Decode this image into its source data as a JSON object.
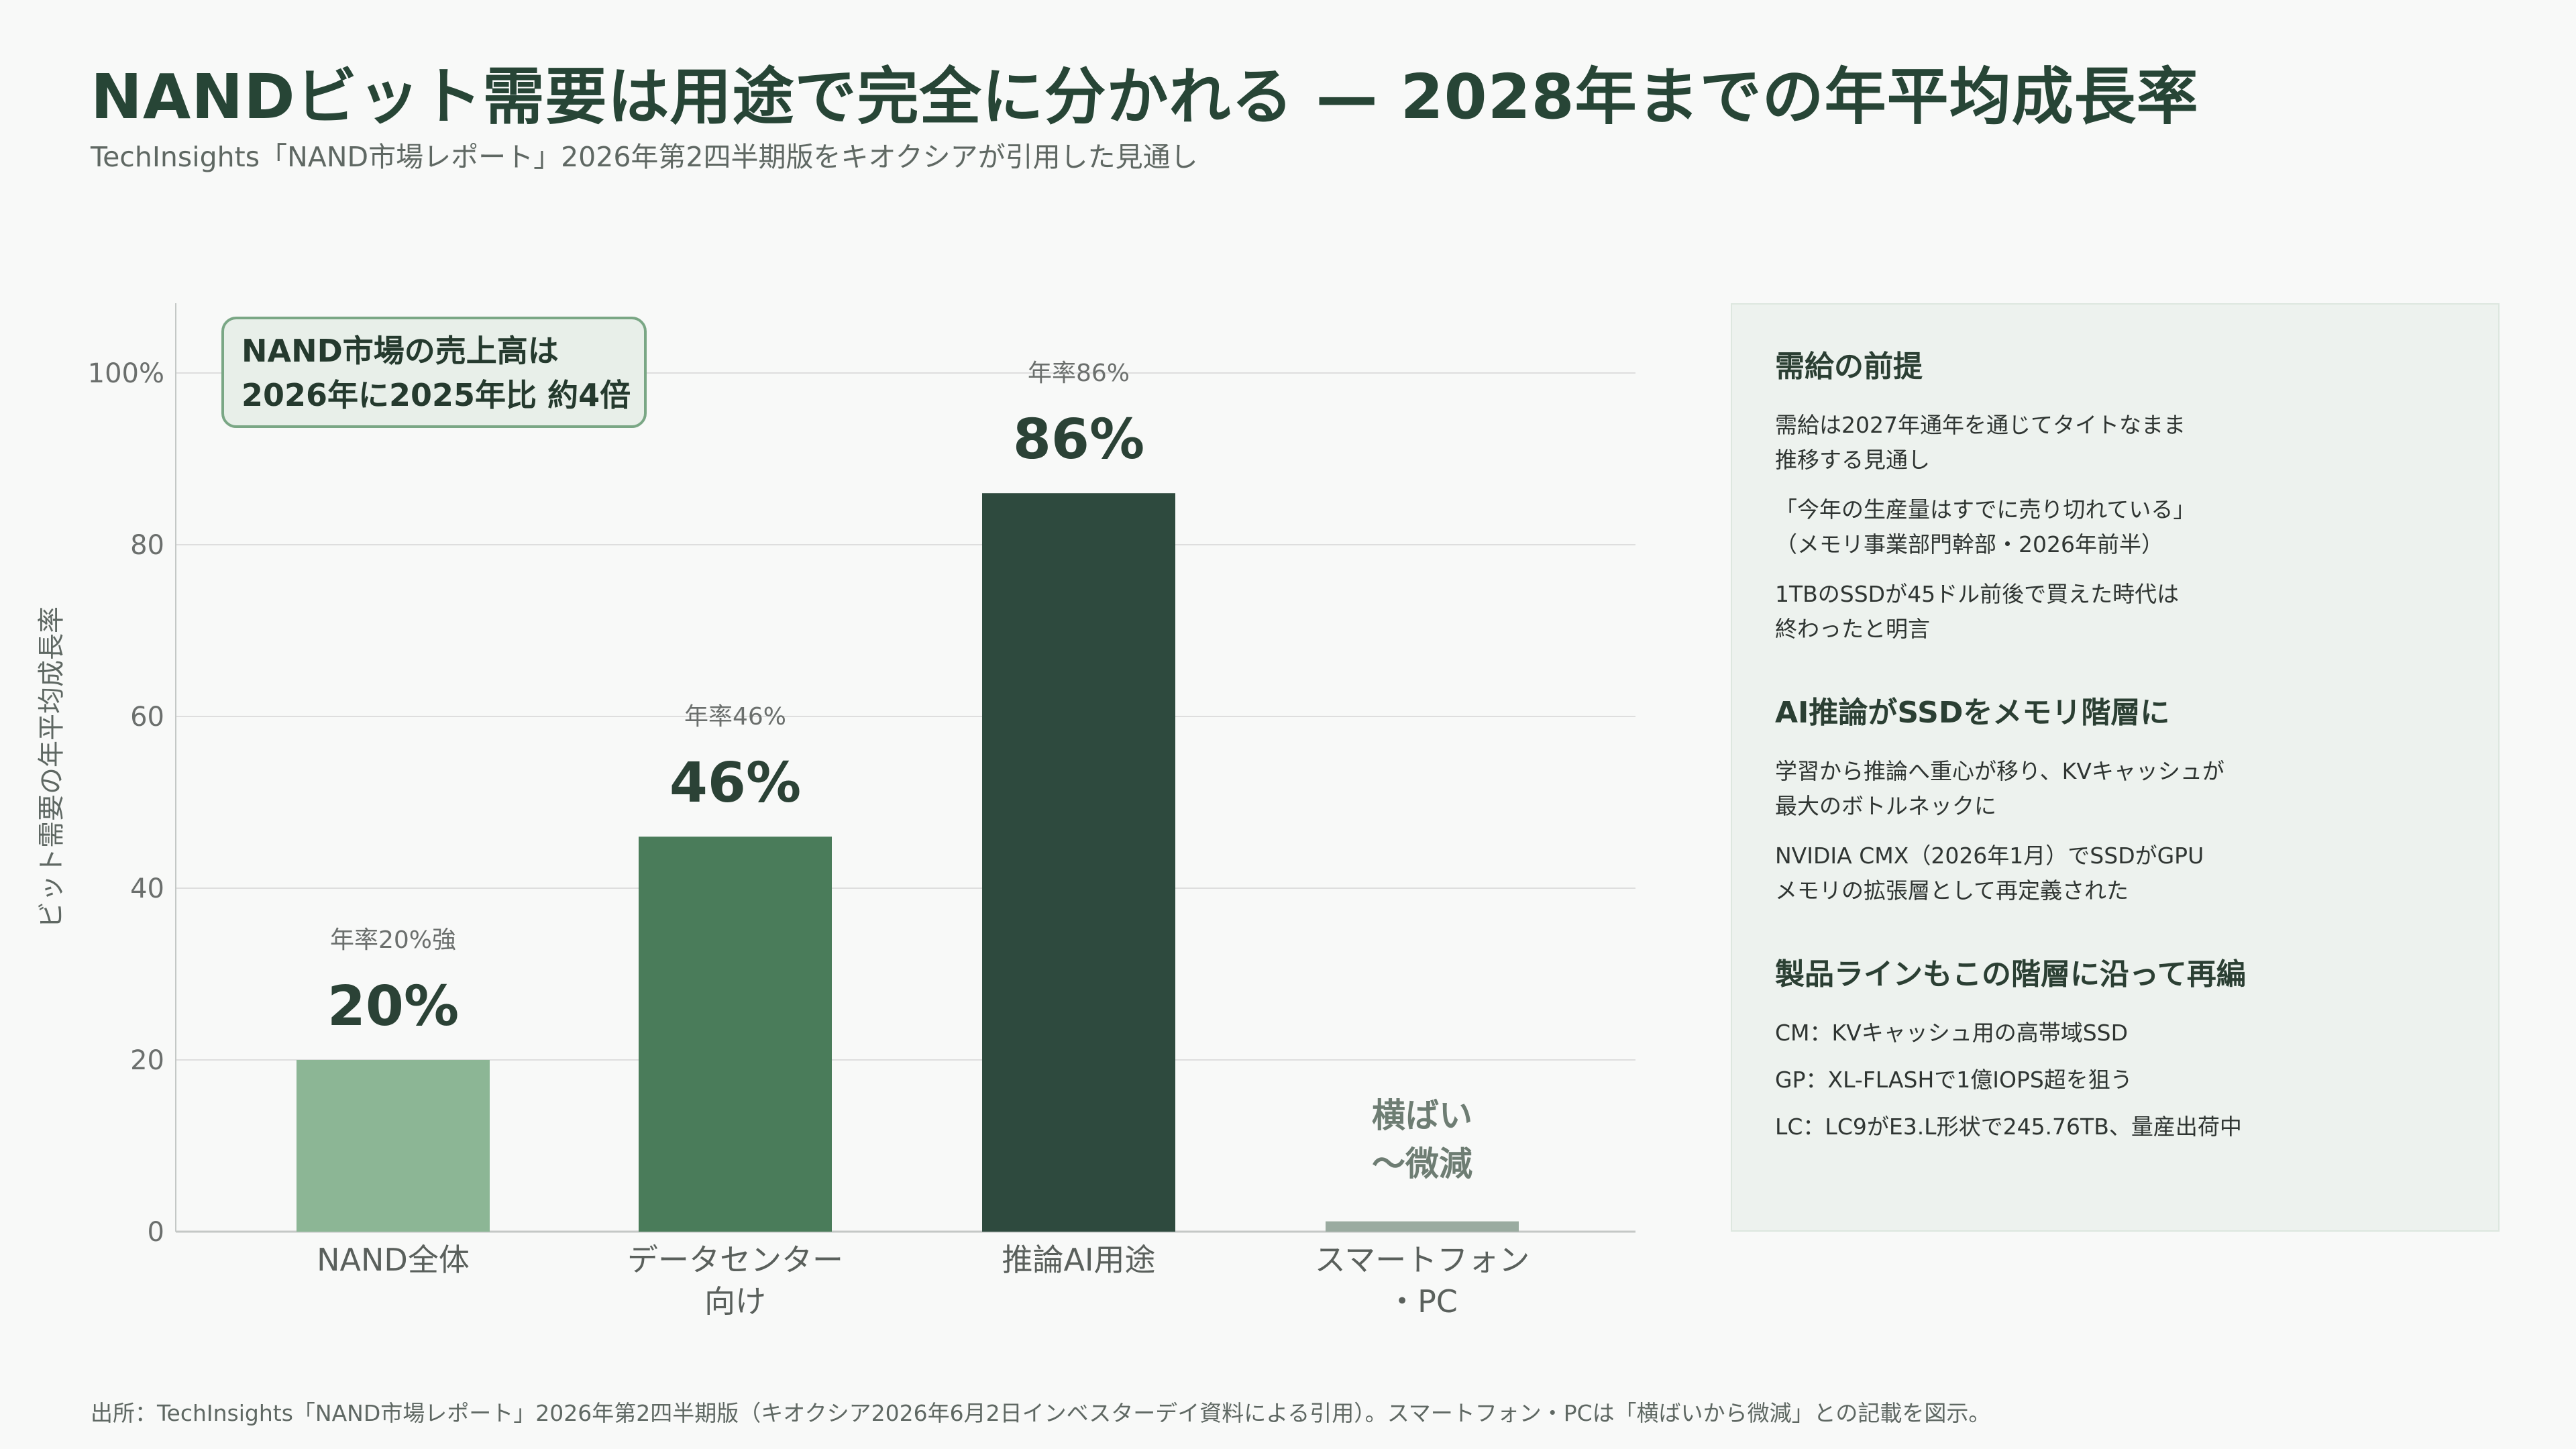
{
  "title": "NANDビット需要は用途で完全に分かれる — 2028年までの年平均成長率",
  "subtitle": "TechInsights「NAND市場レポート」2026年第2四半期版をキオクシアが引用した見通し",
  "callout": {
    "line1": "NAND市場の売上高は",
    "line2": "2026年に2025年比 約4倍"
  },
  "chart_data": {
    "type": "bar",
    "ylabel": "ビット需要の年平均成長率",
    "ylim": [
      0,
      108
    ],
    "yticks": [
      0,
      20,
      40,
      60,
      80,
      100
    ],
    "ytick_labels": [
      "0",
      "20",
      "40",
      "60",
      "80",
      "100%"
    ],
    "grid": true,
    "categories": [
      {
        "line1": "NAND全体",
        "line2": ""
      },
      {
        "line1": "データセンター",
        "line2": "向け"
      },
      {
        "line1": "推論AI用途",
        "line2": ""
      },
      {
        "line1": "スマートフォン",
        "line2": "・PC"
      }
    ],
    "values": [
      20,
      46,
      86,
      1.2
    ],
    "value_labels": [
      "20%",
      "46%",
      "86%",
      ""
    ],
    "small_labels": [
      "年率20%強",
      "年率46%",
      "年率86%",
      ""
    ],
    "flat_label": [
      "横ばい",
      "〜微減"
    ],
    "colors": [
      "#8cb695",
      "#4a7c5a",
      "#2e4a3e",
      "#9aaba0"
    ]
  },
  "panel": {
    "sections": [
      {
        "title": "需給の前提",
        "items": [
          [
            "需給は2027年通年を通じてタイトなまま",
            "推移する見通し"
          ],
          [
            "「今年の生産量はすでに売り切れている」",
            "（メモリ事業部門幹部・2026年前半）"
          ],
          [
            "1TBのSSDが45ドル前後で買えた時代は",
            "終わったと明言"
          ]
        ]
      },
      {
        "title": "AI推論がSSDをメモリ階層に",
        "items": [
          [
            "学習から推論へ重心が移り、KVキャッシュが",
            "最大のボトルネックに"
          ],
          [
            "NVIDIA CMX（2026年1月）でSSDがGPU",
            "メモリの拡張層として再定義された"
          ]
        ]
      },
      {
        "title": "製品ラインもこの階層に沿って再編",
        "items": [
          [
            "CM：KVキャッシュ用の高帯域SSD"
          ],
          [
            "GP：XL-FLASHで1億IOPS超を狙う"
          ],
          [
            "LC：LC9がE3.L形状で245.76TB、量産出荷中"
          ]
        ]
      }
    ]
  },
  "footer": "出所：TechInsights「NAND市場レポート」2026年第2四半期版（キオクシア2026年6月2日インベスターデイ資料による引用）。スマートフォン・PCは「横ばいから微減」との記載を図示。"
}
